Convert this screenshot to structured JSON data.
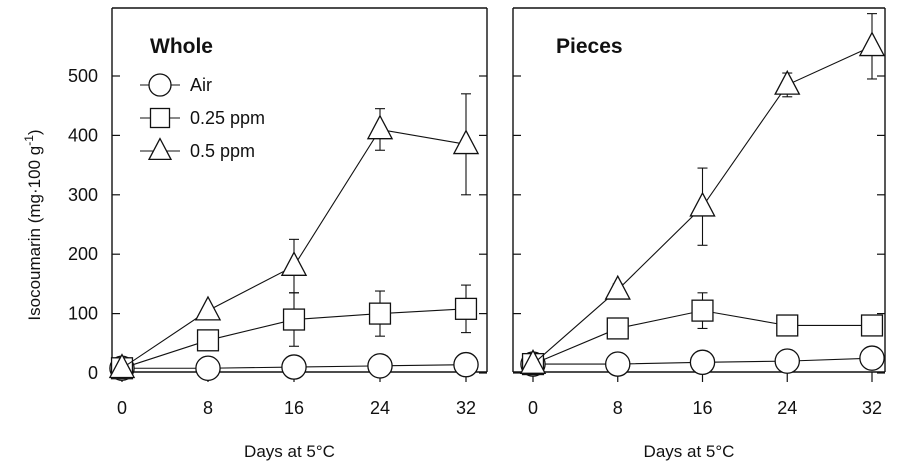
{
  "chart_data": {
    "type": "line",
    "ylabel": "Isocoumarin (mg·100 g",
    "ylabel_sup": "-1",
    "ylabel_close": ")",
    "ylim": [
      0,
      550
    ],
    "yticks": [
      0,
      100,
      200,
      300,
      400,
      500
    ],
    "xlim": [
      0,
      32
    ],
    "legend": {
      "placement": "top-left",
      "entries": [
        {
          "name": "Air",
          "marker": "circle"
        },
        {
          "name": "0.25 ppm",
          "marker": "square"
        },
        {
          "name": "0.5 ppm",
          "marker": "triangle"
        }
      ]
    },
    "panels": [
      {
        "title": "Whole",
        "xlabel": "Days at 5°C",
        "x": [
          0,
          8,
          16,
          24,
          32
        ],
        "series": [
          {
            "name": "Air",
            "marker": "circle",
            "values": [
              8,
              8,
              10,
              12,
              14
            ],
            "err": [
              0,
              0,
              0,
              0,
              0
            ]
          },
          {
            "name": "0.25 ppm",
            "marker": "square",
            "values": [
              8,
              55,
              90,
              100,
              108
            ],
            "err": [
              0,
              0,
              45,
              38,
              40
            ]
          },
          {
            "name": "0.5 ppm",
            "marker": "triangle",
            "values": [
              8,
              105,
              180,
              410,
              385
            ],
            "err": [
              0,
              0,
              45,
              35,
              85
            ]
          }
        ]
      },
      {
        "title": "Pieces",
        "xlabel": "Days at 5°C",
        "x": [
          0,
          8,
          16,
          24,
          32
        ],
        "series": [
          {
            "name": "Air",
            "marker": "circle",
            "values": [
              15,
              15,
              18,
              20,
              25
            ],
            "err": [
              0,
              0,
              0,
              0,
              0
            ]
          },
          {
            "name": "0.25 ppm",
            "marker": "square",
            "values": [
              15,
              75,
              105,
              80,
              80
            ],
            "err": [
              0,
              0,
              30,
              0,
              15
            ]
          },
          {
            "name": "0.5 ppm",
            "marker": "triangle",
            "values": [
              15,
              140,
              280,
              485,
              550
            ],
            "err": [
              0,
              10,
              65,
              20,
              55
            ]
          }
        ]
      }
    ]
  }
}
